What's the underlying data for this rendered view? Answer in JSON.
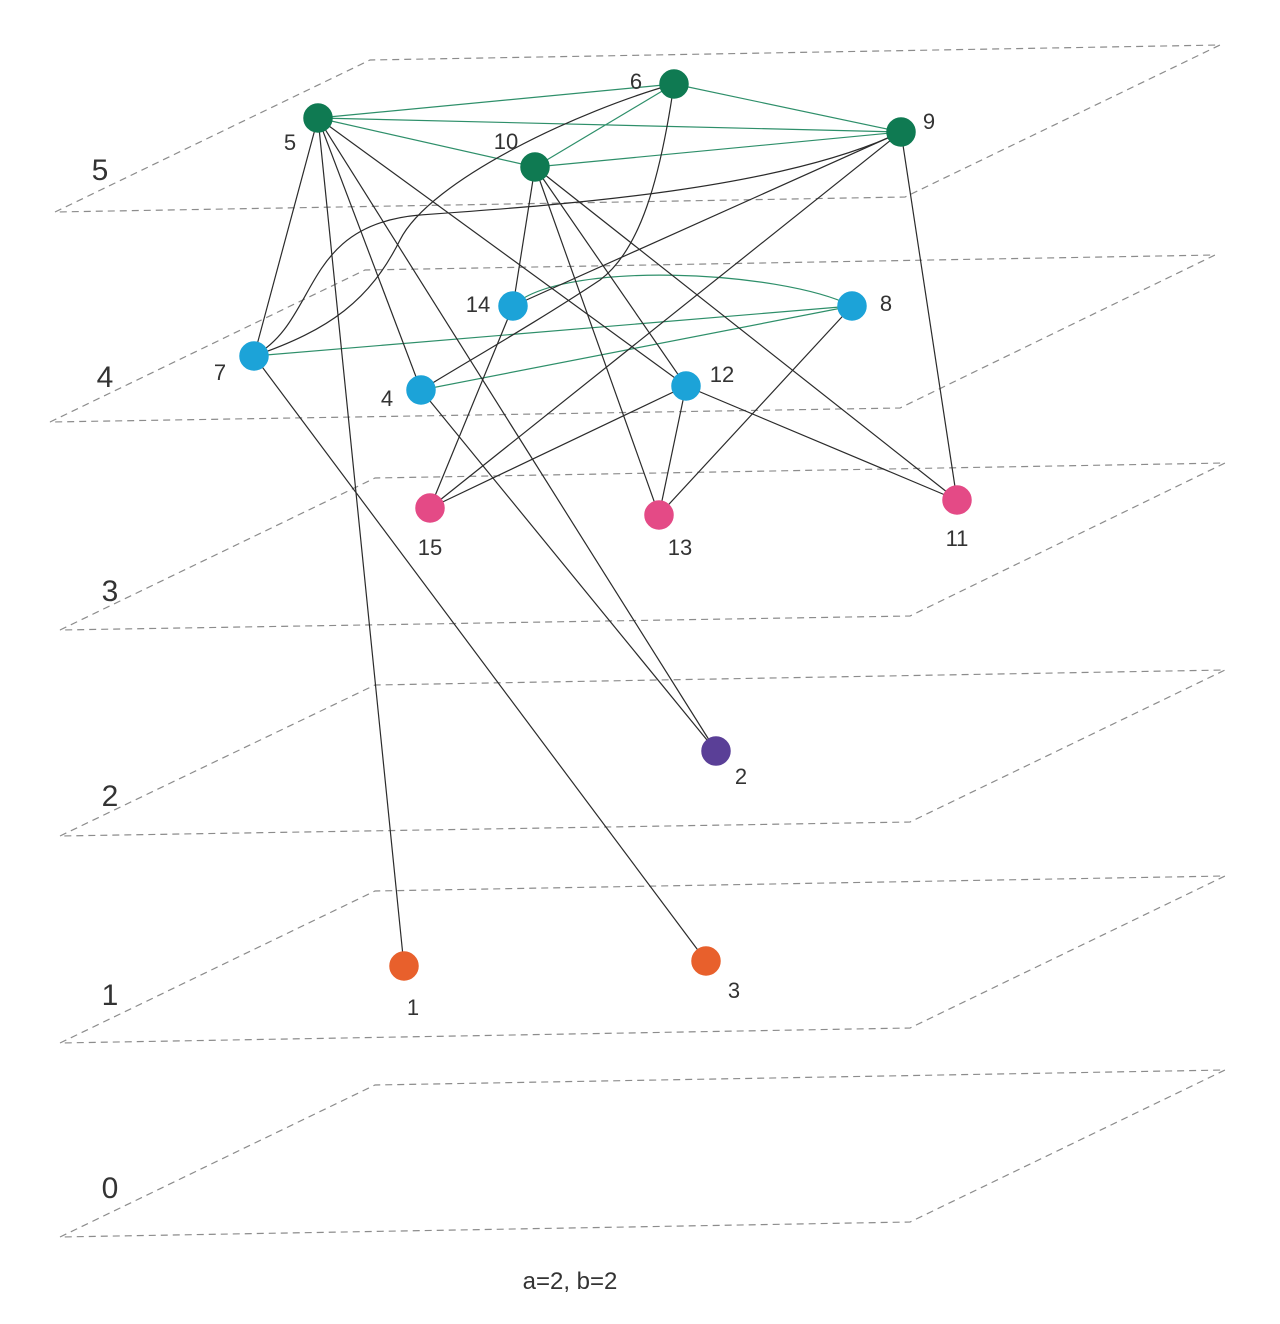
{
  "layers": [
    {
      "id": 5,
      "label": "5"
    },
    {
      "id": 4,
      "label": "4"
    },
    {
      "id": 3,
      "label": "3"
    },
    {
      "id": 2,
      "label": "2"
    },
    {
      "id": 1,
      "label": "1"
    },
    {
      "id": 0,
      "label": "0"
    }
  ],
  "nodes": [
    {
      "id": 1,
      "label": "1",
      "layer": 1,
      "color": "#e8602c"
    },
    {
      "id": 2,
      "label": "2",
      "layer": 2,
      "color": "#5a3f97"
    },
    {
      "id": 3,
      "label": "3",
      "layer": 1,
      "color": "#e8602c"
    },
    {
      "id": 4,
      "label": "4",
      "layer": 4,
      "color": "#1ca3d8"
    },
    {
      "id": 5,
      "label": "5",
      "layer": 5,
      "color": "#0f7a52"
    },
    {
      "id": 6,
      "label": "6",
      "layer": 5,
      "color": "#0f7a52"
    },
    {
      "id": 7,
      "label": "7",
      "layer": 4,
      "color": "#1ca3d8"
    },
    {
      "id": 8,
      "label": "8",
      "layer": 4,
      "color": "#1ca3d8"
    },
    {
      "id": 9,
      "label": "9",
      "layer": 5,
      "color": "#0f7a52"
    },
    {
      "id": 10,
      "label": "10",
      "layer": 5,
      "color": "#0f7a52"
    },
    {
      "id": 11,
      "label": "11",
      "layer": 3,
      "color": "#e44a86"
    },
    {
      "id": 12,
      "label": "12",
      "layer": 4,
      "color": "#1ca3d8"
    },
    {
      "id": 13,
      "label": "13",
      "layer": 3,
      "color": "#e44a86"
    },
    {
      "id": 14,
      "label": "14",
      "layer": 4,
      "color": "#1ca3d8"
    },
    {
      "id": 15,
      "label": "15",
      "layer": 3,
      "color": "#e44a86"
    }
  ],
  "edges": [
    {
      "from": 5,
      "to": 6,
      "kind": "same-layer"
    },
    {
      "from": 5,
      "to": 9,
      "kind": "same-layer"
    },
    {
      "from": 5,
      "to": 10,
      "kind": "same-layer"
    },
    {
      "from": 6,
      "to": 9,
      "kind": "same-layer"
    },
    {
      "from": 6,
      "to": 10,
      "kind": "same-layer"
    },
    {
      "from": 10,
      "to": 9,
      "kind": "same-layer"
    },
    {
      "from": 7,
      "to": 8,
      "kind": "same-layer"
    },
    {
      "from": 4,
      "to": 8,
      "kind": "same-layer"
    },
    {
      "from": 14,
      "to": 8,
      "kind": "same-layer"
    },
    {
      "from": 5,
      "to": 7,
      "kind": "cross-layer"
    },
    {
      "from": 5,
      "to": 1,
      "kind": "cross-layer"
    },
    {
      "from": 5,
      "to": 4,
      "kind": "cross-layer"
    },
    {
      "from": 5,
      "to": 2,
      "kind": "cross-layer"
    },
    {
      "from": 5,
      "to": 12,
      "kind": "cross-layer"
    },
    {
      "from": 6,
      "to": 7,
      "kind": "cross-layer"
    },
    {
      "from": 6,
      "to": 4,
      "kind": "cross-layer"
    },
    {
      "from": 9,
      "to": 7,
      "kind": "cross-layer"
    },
    {
      "from": 9,
      "to": 14,
      "kind": "cross-layer"
    },
    {
      "from": 9,
      "to": 15,
      "kind": "cross-layer"
    },
    {
      "from": 9,
      "to": 11,
      "kind": "cross-layer"
    },
    {
      "from": 10,
      "to": 14,
      "kind": "cross-layer"
    },
    {
      "from": 10,
      "to": 13,
      "kind": "cross-layer"
    },
    {
      "from": 10,
      "to": 12,
      "kind": "cross-layer"
    },
    {
      "from": 10,
      "to": 11,
      "kind": "cross-layer"
    },
    {
      "from": 7,
      "to": 3,
      "kind": "cross-layer"
    },
    {
      "from": 4,
      "to": 2,
      "kind": "cross-layer"
    },
    {
      "from": 14,
      "to": 15,
      "kind": "cross-layer"
    },
    {
      "from": 12,
      "to": 15,
      "kind": "cross-layer"
    },
    {
      "from": 12,
      "to": 13,
      "kind": "cross-layer"
    },
    {
      "from": 12,
      "to": 11,
      "kind": "cross-layer"
    },
    {
      "from": 8,
      "to": 13,
      "kind": "cross-layer"
    }
  ],
  "colors": {
    "same_layer_edge": "#2e8f6a",
    "cross_layer_edge": "#2b2b2b",
    "plane": "#8c8c8c",
    "text": "#333333"
  },
  "caption": "a=2,  b=2"
}
